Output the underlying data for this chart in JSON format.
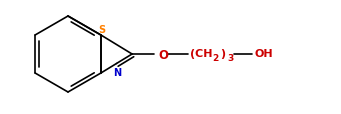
{
  "bg_color": "#ffffff",
  "line_color": "#000000",
  "atom_color_S": "#ff8000",
  "atom_color_N": "#0000cc",
  "atom_color_O": "#cc0000",
  "figsize": [
    3.41,
    1.15
  ],
  "dpi": 100,
  "s_text": "S",
  "n_text": "N",
  "o_text": "O",
  "oh_text": "OH"
}
